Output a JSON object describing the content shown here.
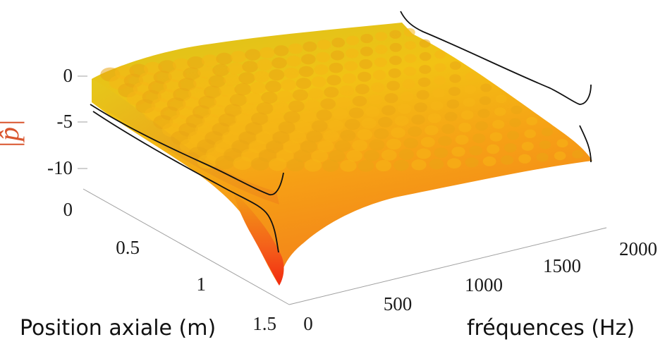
{
  "chart_data": {
    "type": "surface",
    "zlabel": "|p̂|",
    "xlabel": "fréquences (Hz)",
    "ylabel": "Position axiale (m)",
    "x_ticks": [
      "0",
      "500",
      "1000",
      "1500",
      "2000"
    ],
    "y_ticks": [
      "0",
      "0.5",
      "1",
      "1.5"
    ],
    "z_ticks": [
      "0",
      "-5",
      "-10"
    ],
    "xlim": [
      0,
      2000
    ],
    "ylim": [
      0,
      1.5
    ],
    "zlim": [
      -12,
      0
    ],
    "colormap": [
      "#d4c31e",
      "#f2cf14",
      "#f7a717",
      "#f77a1a",
      "#f23c10"
    ],
    "grid": false
  },
  "colors": {
    "zlabel": "#d9552e",
    "axis": "#9a9a9a",
    "curve": "#111111"
  }
}
